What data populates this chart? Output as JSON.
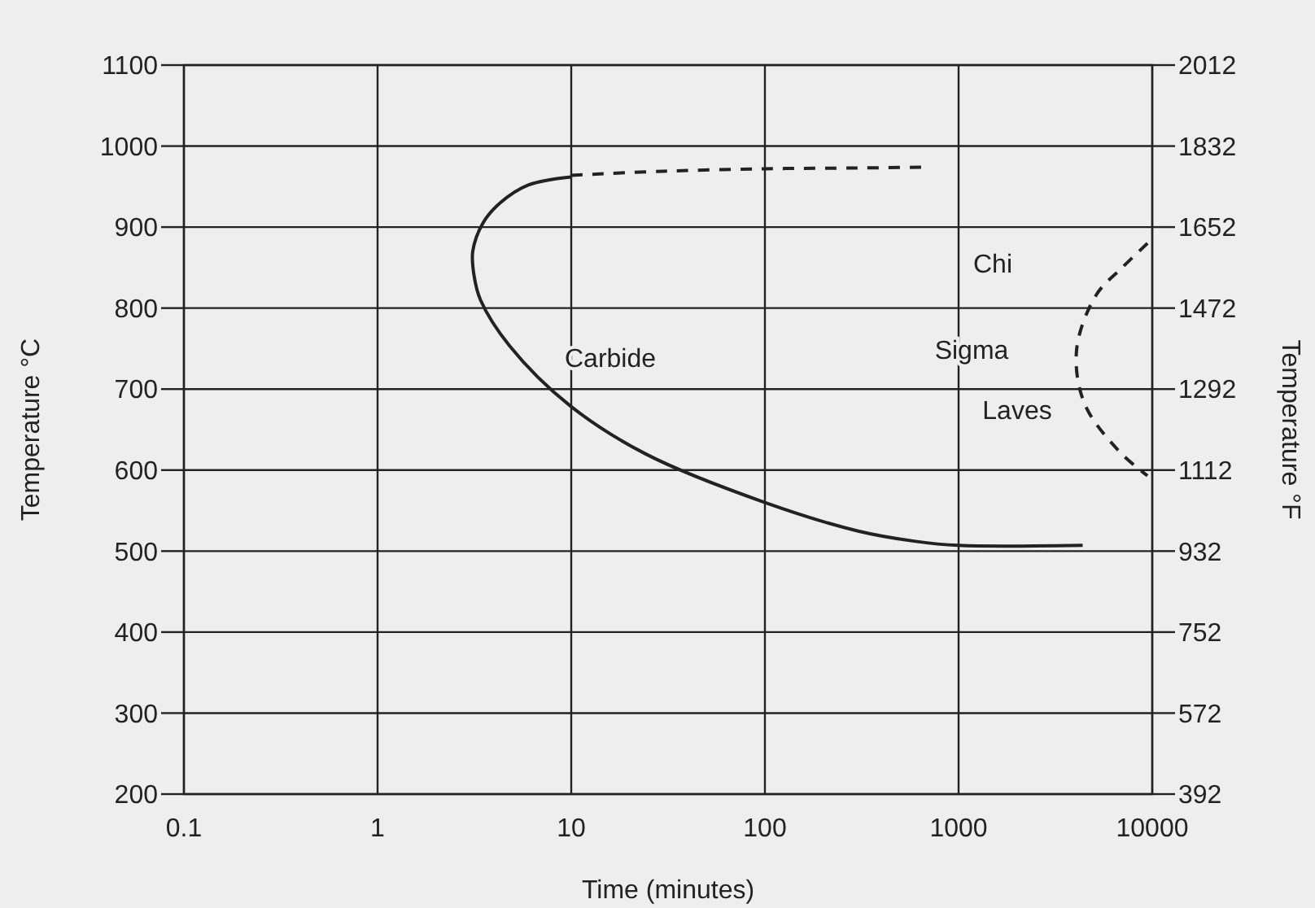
{
  "chart_data": {
    "type": "line",
    "xlabel": "Time (minutes)",
    "ylabel": "Temperature °C",
    "y2label": "Temperature °F",
    "log": "x",
    "grid": true,
    "marker": "none",
    "xlim": [
      0.1,
      10000
    ],
    "xticks": [
      0.1,
      1,
      10,
      100,
      1000,
      10000
    ],
    "ylim": [
      200,
      1100
    ],
    "yticks": [
      200,
      300,
      400,
      500,
      600,
      700,
      800,
      900,
      1000,
      1100
    ],
    "y2lim": [
      392,
      2012
    ],
    "y2ticks": [
      392,
      572,
      752,
      932,
      1112,
      1292,
      1472,
      1652,
      1832,
      2012
    ],
    "series": [
      {
        "color": "#222222",
        "line_style": "solid",
        "x": [
          10,
          6,
          4.3,
          3.5,
          3.1,
          3.15,
          3.4,
          4.82,
          9.8,
          24.2,
          100,
          300,
          600,
          1000,
          4370
        ],
        "values": [
          962,
          952,
          930,
          905,
          870,
          840,
          810,
          753,
          680,
          620,
          560,
          525,
          512,
          507,
          507
        ]
      },
      {
        "color": "#222222",
        "line_style": "dashed",
        "x": [
          10,
          30,
          100,
          300,
          650
        ],
        "values": [
          964,
          969,
          972,
          973,
          974
        ]
      },
      {
        "color": "#222222",
        "line_style": "dashed",
        "x": [
          9450,
          7000,
          5130,
          4070,
          4470,
          6760,
          9450
        ],
        "values": [
          880,
          850,
          816,
          749,
          682,
          623,
          593
        ]
      }
    ],
    "annotations": [
      "Carbide",
      "Chi",
      "Sigma",
      "Laves"
    ]
  }
}
